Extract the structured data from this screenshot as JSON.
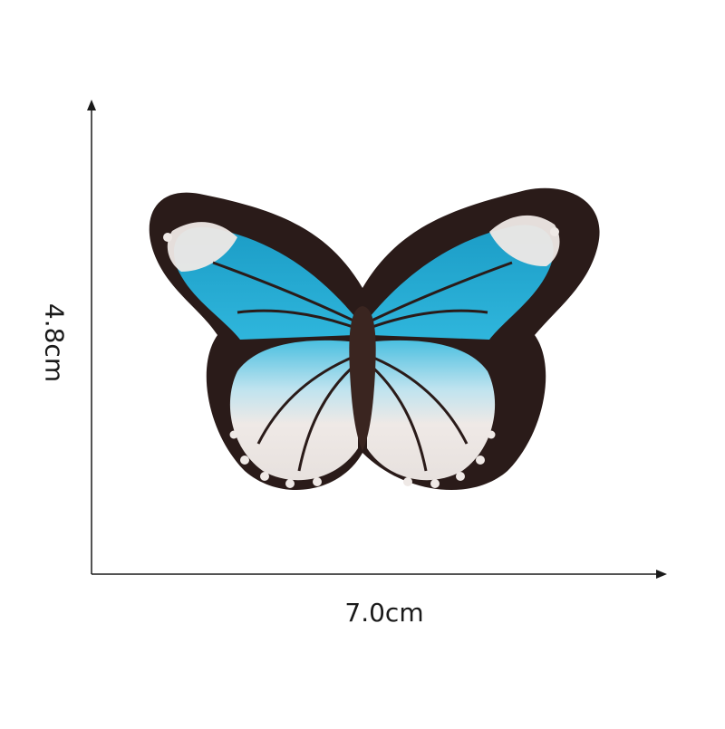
{
  "dimensions": {
    "width_label": "7.0cm",
    "height_label": "4.8cm"
  },
  "colors": {
    "background": "#ffffff",
    "axis": "#1a1a1a",
    "patch_border": "#2a1b19",
    "wing_blue": "#1fa6cf",
    "wing_blue_light": "#55c3e2",
    "wing_white": "#efe9e6",
    "body_brown": "#3a2520"
  },
  "subject": "embroidered-butterfly-patch"
}
